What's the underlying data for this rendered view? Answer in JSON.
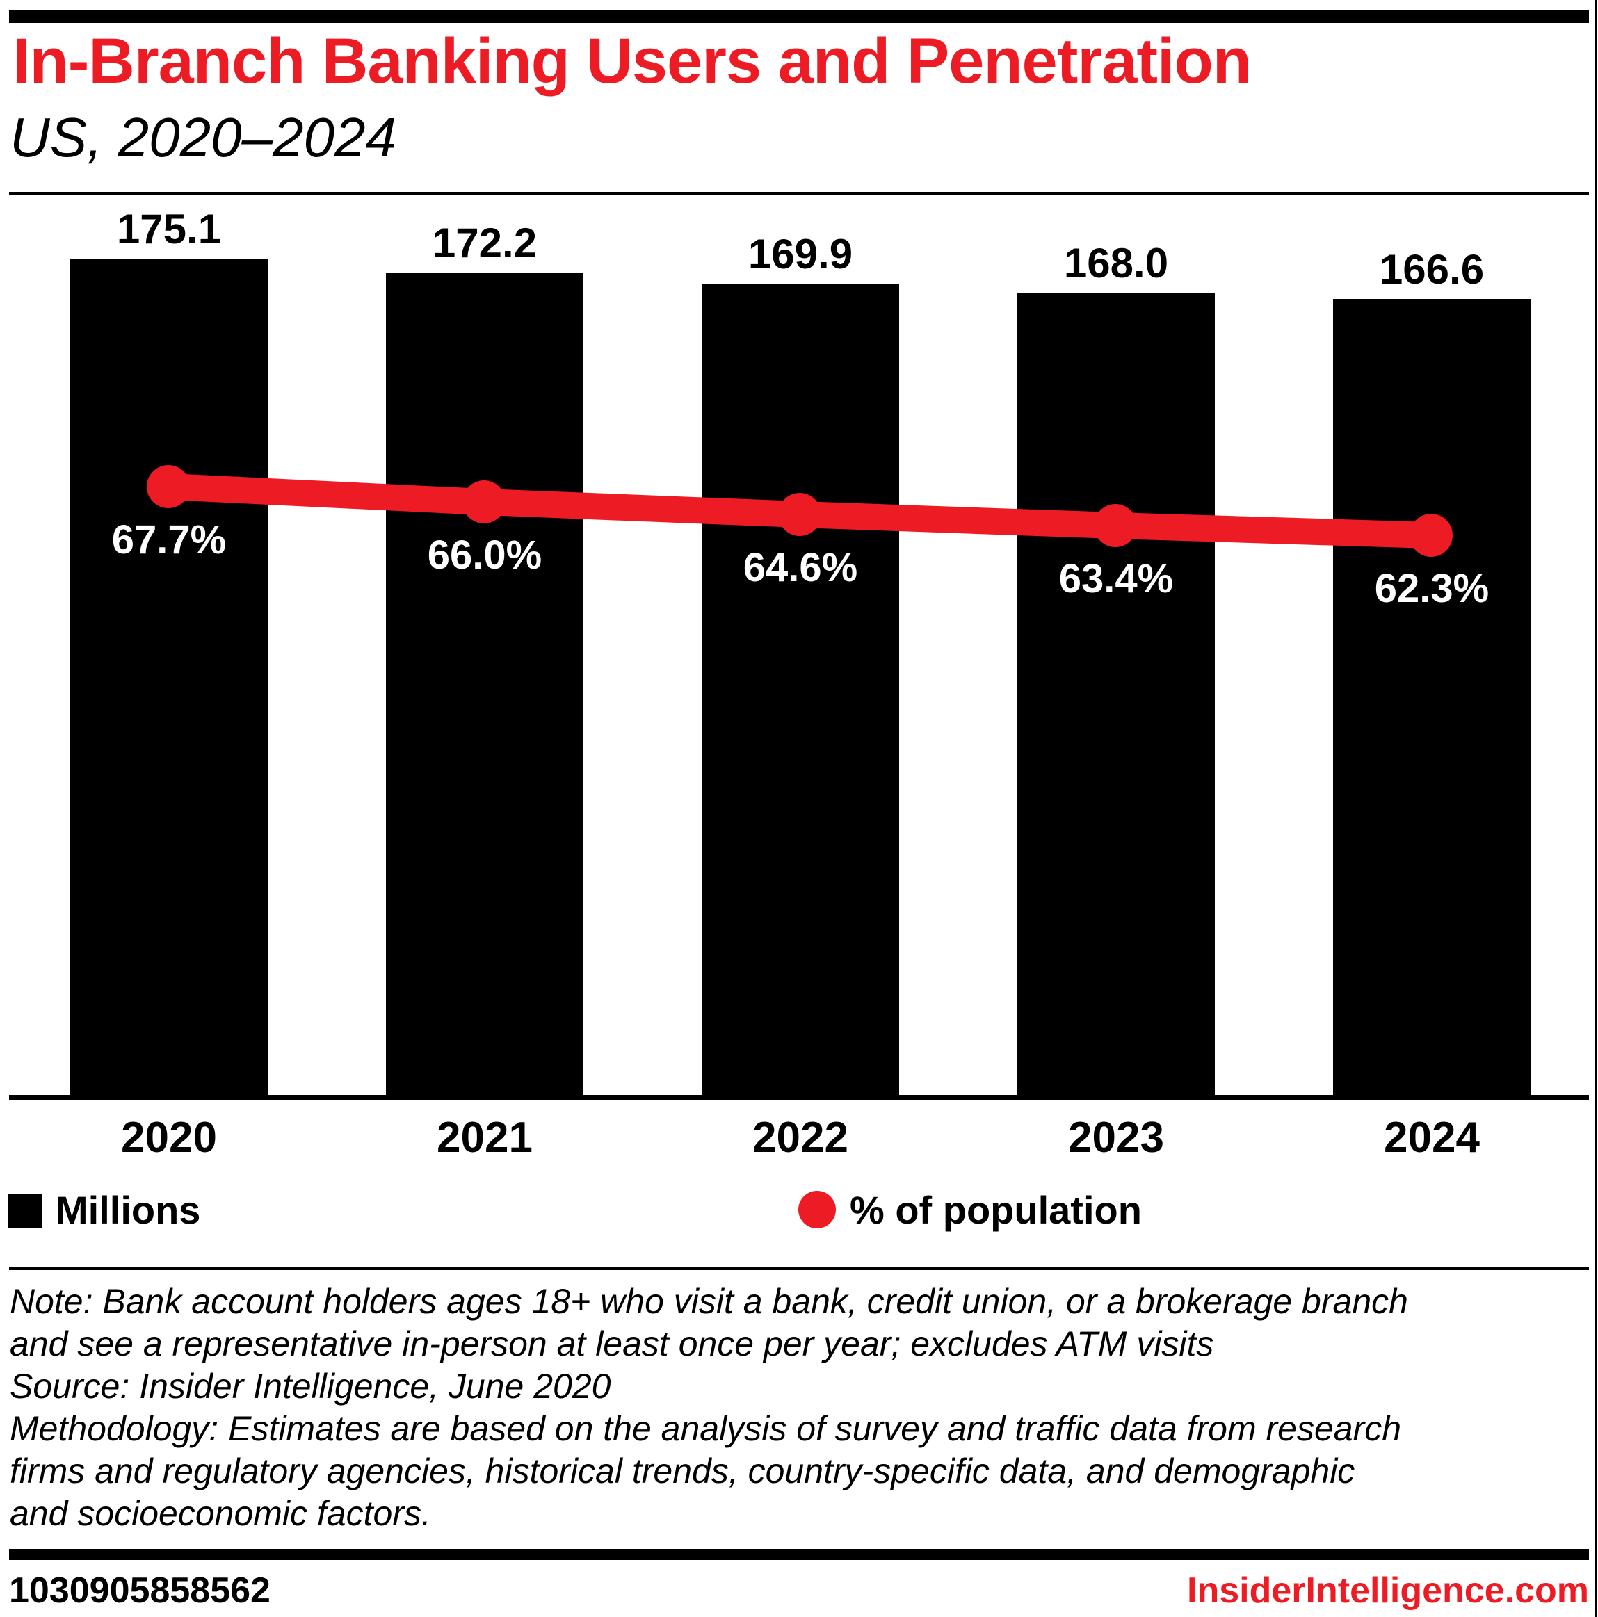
{
  "header": {
    "title": "In-Branch Banking Users and Penetration",
    "subtitle": "US, 2020–2024"
  },
  "chart_data": {
    "type": "bar",
    "categories": [
      "2020",
      "2021",
      "2022",
      "2023",
      "2024"
    ],
    "series": [
      {
        "name": "Millions",
        "type": "bar",
        "values": [
          175.1,
          172.2,
          169.9,
          168.0,
          166.6
        ],
        "labels": [
          "175.1",
          "172.2",
          "169.9",
          "168.0",
          "166.6"
        ],
        "color": "#000000"
      },
      {
        "name": "% of population",
        "type": "line",
        "values": [
          67.7,
          66.0,
          64.6,
          63.4,
          62.3
        ],
        "labels": [
          "67.7%",
          "66.0%",
          "64.6%",
          "63.4%",
          "62.3%"
        ],
        "color": "#ED1C24"
      }
    ],
    "title": "In-Branch Banking Users and Penetration",
    "subtitle": "US, 2020–2024",
    "xlabel": "",
    "ylabel": "",
    "grid": false,
    "legend_position": "bottom"
  },
  "legend": {
    "bars_label": "Millions",
    "line_label": "% of population"
  },
  "notes": {
    "text": "Note: Bank account holders ages 18+ who visit a bank, credit union, or a brokerage branch\nand see a representative in-person at least once per year; excludes ATM visits\nSource: Insider Intelligence, June 2020\nMethodology: Estimates are based on the analysis of survey and traffic data from research\nfirms and regulatory agencies, historical trends, country-specific data, and demographic\nand socioeconomic factors."
  },
  "footer": {
    "id": "1030905858562",
    "site": "InsiderIntelligence.com"
  },
  "colors": {
    "accent_red": "#ED1C24",
    "bar_black": "#000000",
    "background": "#FFFFFF",
    "pct_label_white": "#FFFFFF"
  }
}
